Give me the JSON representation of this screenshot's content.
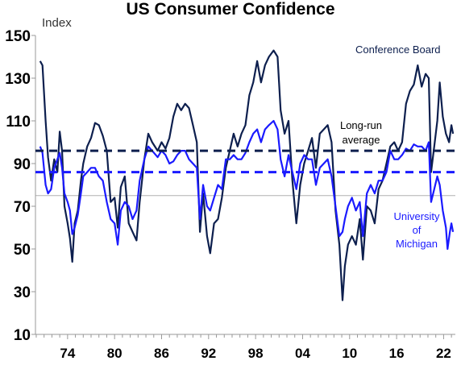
{
  "chart_data": {
    "type": "line",
    "title": "US Consumer Confidence",
    "ylabel": "Index",
    "xlabel": "",
    "ylim": [
      10,
      150
    ],
    "xlim": [
      1969.9,
      2023.5
    ],
    "y_ticks": [
      10,
      30,
      50,
      70,
      90,
      110,
      130,
      150
    ],
    "x_tick_labels": [
      "74",
      "80",
      "86",
      "92",
      "98",
      "04",
      "10",
      "16",
      "22"
    ],
    "x_tick_years": [
      1974,
      1980,
      1986,
      1992,
      1998,
      2004,
      2010,
      2016,
      2022
    ],
    "grid": false,
    "colors": {
      "conference_board": "#0d1f4e",
      "university_of_michigan": "#1a1aff",
      "axis": "#999999",
      "reference_line": "#b0b0b0"
    },
    "reference_line": {
      "y": 75
    },
    "series": [
      {
        "key": "conference_board",
        "name": "Conference Board",
        "long_run_average": 96,
        "points": [
          [
            1970.5,
            138
          ],
          [
            1970.8,
            136
          ],
          [
            1971.2,
            110
          ],
          [
            1971.5,
            93
          ],
          [
            1971.9,
            82
          ],
          [
            1972.3,
            92
          ],
          [
            1972.7,
            86
          ],
          [
            1973.0,
            105
          ],
          [
            1973.3,
            96
          ],
          [
            1973.6,
            70
          ],
          [
            1974.0,
            62
          ],
          [
            1974.3,
            55
          ],
          [
            1974.6,
            44
          ],
          [
            1974.9,
            62
          ],
          [
            1975.3,
            68
          ],
          [
            1975.7,
            82
          ],
          [
            1976.0,
            90
          ],
          [
            1976.5,
            98
          ],
          [
            1977.0,
            102
          ],
          [
            1977.5,
            109
          ],
          [
            1978.0,
            108
          ],
          [
            1978.5,
            103
          ],
          [
            1979.0,
            96
          ],
          [
            1979.5,
            72
          ],
          [
            1980.0,
            74
          ],
          [
            1980.4,
            60
          ],
          [
            1980.8,
            79
          ],
          [
            1981.3,
            84
          ],
          [
            1981.8,
            62
          ],
          [
            1982.3,
            58
          ],
          [
            1982.8,
            54
          ],
          [
            1983.2,
            72
          ],
          [
            1983.8,
            92
          ],
          [
            1984.3,
            104
          ],
          [
            1984.8,
            100
          ],
          [
            1985.5,
            96
          ],
          [
            1986.0,
            100
          ],
          [
            1986.5,
            97
          ],
          [
            1987.0,
            102
          ],
          [
            1987.5,
            112
          ],
          [
            1988.0,
            118
          ],
          [
            1988.5,
            115
          ],
          [
            1989.0,
            118
          ],
          [
            1989.5,
            116
          ],
          [
            1990.0,
            108
          ],
          [
            1990.5,
            100
          ],
          [
            1990.9,
            58
          ],
          [
            1991.3,
            76
          ],
          [
            1991.8,
            56
          ],
          [
            1992.2,
            48
          ],
          [
            1992.7,
            62
          ],
          [
            1993.2,
            64
          ],
          [
            1993.7,
            74
          ],
          [
            1994.2,
            88
          ],
          [
            1994.7,
            96
          ],
          [
            1995.2,
            104
          ],
          [
            1995.7,
            98
          ],
          [
            1996.2,
            104
          ],
          [
            1996.7,
            108
          ],
          [
            1997.2,
            122
          ],
          [
            1997.7,
            128
          ],
          [
            1998.2,
            138
          ],
          [
            1998.7,
            128
          ],
          [
            1999.2,
            136
          ],
          [
            1999.7,
            140
          ],
          [
            2000.3,
            143
          ],
          [
            2000.8,
            140
          ],
          [
            2001.2,
            115
          ],
          [
            2001.7,
            104
          ],
          [
            2002.2,
            110
          ],
          [
            2002.7,
            82
          ],
          [
            2003.2,
            62
          ],
          [
            2003.7,
            80
          ],
          [
            2004.2,
            90
          ],
          [
            2004.7,
            96
          ],
          [
            2005.2,
            102
          ],
          [
            2005.7,
            88
          ],
          [
            2006.2,
            104
          ],
          [
            2006.7,
            106
          ],
          [
            2007.2,
            108
          ],
          [
            2007.7,
            100
          ],
          [
            2008.2,
            68
          ],
          [
            2008.7,
            52
          ],
          [
            2009.1,
            26
          ],
          [
            2009.4,
            42
          ],
          [
            2009.8,
            52
          ],
          [
            2010.3,
            56
          ],
          [
            2010.8,
            52
          ],
          [
            2011.3,
            64
          ],
          [
            2011.7,
            45
          ],
          [
            2012.2,
            70
          ],
          [
            2012.7,
            68
          ],
          [
            2013.2,
            62
          ],
          [
            2013.7,
            78
          ],
          [
            2014.2,
            82
          ],
          [
            2014.7,
            90
          ],
          [
            2015.2,
            98
          ],
          [
            2015.7,
            100
          ],
          [
            2016.2,
            96
          ],
          [
            2016.7,
            100
          ],
          [
            2017.2,
            118
          ],
          [
            2017.7,
            124
          ],
          [
            2018.2,
            127
          ],
          [
            2018.7,
            136
          ],
          [
            2019.2,
            126
          ],
          [
            2019.7,
            132
          ],
          [
            2020.1,
            130
          ],
          [
            2020.4,
            86
          ],
          [
            2020.8,
            98
          ],
          [
            2021.2,
            110
          ],
          [
            2021.5,
            128
          ],
          [
            2021.9,
            112
          ],
          [
            2022.3,
            104
          ],
          [
            2022.7,
            100
          ],
          [
            2023.0,
            108
          ],
          [
            2023.2,
            104
          ]
        ]
      },
      {
        "key": "university_of_michigan",
        "name": "University of Michigan",
        "long_run_average": 86,
        "points": [
          [
            1970.5,
            98
          ],
          [
            1970.8,
            95
          ],
          [
            1971.2,
            80
          ],
          [
            1971.5,
            76
          ],
          [
            1971.9,
            78
          ],
          [
            1972.3,
            88
          ],
          [
            1972.7,
            92
          ],
          [
            1973.0,
            95
          ],
          [
            1973.3,
            88
          ],
          [
            1973.6,
            76
          ],
          [
            1974.0,
            72
          ],
          [
            1974.3,
            68
          ],
          [
            1974.6,
            57
          ],
          [
            1974.9,
            60
          ],
          [
            1975.3,
            66
          ],
          [
            1975.7,
            76
          ],
          [
            1976.0,
            84
          ],
          [
            1976.5,
            86
          ],
          [
            1977.0,
            88
          ],
          [
            1977.5,
            88
          ],
          [
            1978.0,
            84
          ],
          [
            1978.5,
            82
          ],
          [
            1979.0,
            72
          ],
          [
            1979.5,
            64
          ],
          [
            1980.0,
            62
          ],
          [
            1980.4,
            52
          ],
          [
            1980.8,
            68
          ],
          [
            1981.3,
            72
          ],
          [
            1981.8,
            70
          ],
          [
            1982.3,
            64
          ],
          [
            1982.8,
            68
          ],
          [
            1983.2,
            82
          ],
          [
            1983.8,
            92
          ],
          [
            1984.3,
            98
          ],
          [
            1984.8,
            96
          ],
          [
            1985.5,
            93
          ],
          [
            1986.0,
            96
          ],
          [
            1986.5,
            94
          ],
          [
            1987.0,
            90
          ],
          [
            1987.5,
            91
          ],
          [
            1988.0,
            94
          ],
          [
            1988.5,
            96
          ],
          [
            1989.0,
            96
          ],
          [
            1989.5,
            92
          ],
          [
            1990.0,
            90
          ],
          [
            1990.5,
            88
          ],
          [
            1990.9,
            64
          ],
          [
            1991.3,
            80
          ],
          [
            1991.8,
            70
          ],
          [
            1992.2,
            68
          ],
          [
            1992.7,
            74
          ],
          [
            1993.2,
            80
          ],
          [
            1993.7,
            78
          ],
          [
            1994.2,
            92
          ],
          [
            1994.7,
            92
          ],
          [
            1995.2,
            94
          ],
          [
            1995.7,
            92
          ],
          [
            1996.2,
            92
          ],
          [
            1996.7,
            95
          ],
          [
            1997.2,
            100
          ],
          [
            1997.7,
            104
          ],
          [
            1998.2,
            106
          ],
          [
            1998.7,
            100
          ],
          [
            1999.2,
            106
          ],
          [
            1999.7,
            108
          ],
          [
            2000.3,
            110
          ],
          [
            2000.8,
            106
          ],
          [
            2001.2,
            92
          ],
          [
            2001.7,
            84
          ],
          [
            2002.2,
            94
          ],
          [
            2002.7,
            86
          ],
          [
            2003.2,
            78
          ],
          [
            2003.7,
            90
          ],
          [
            2004.2,
            94
          ],
          [
            2004.7,
            92
          ],
          [
            2005.2,
            92
          ],
          [
            2005.7,
            80
          ],
          [
            2006.2,
            88
          ],
          [
            2006.7,
            90
          ],
          [
            2007.2,
            92
          ],
          [
            2007.7,
            84
          ],
          [
            2008.2,
            70
          ],
          [
            2008.7,
            56
          ],
          [
            2009.1,
            58
          ],
          [
            2009.4,
            64
          ],
          [
            2009.8,
            70
          ],
          [
            2010.3,
            74
          ],
          [
            2010.8,
            68
          ],
          [
            2011.3,
            72
          ],
          [
            2011.7,
            56
          ],
          [
            2012.2,
            76
          ],
          [
            2012.7,
            80
          ],
          [
            2013.2,
            76
          ],
          [
            2013.7,
            82
          ],
          [
            2014.2,
            82
          ],
          [
            2014.7,
            86
          ],
          [
            2015.2,
            96
          ],
          [
            2015.7,
            92
          ],
          [
            2016.2,
            92
          ],
          [
            2016.7,
            94
          ],
          [
            2017.2,
            97
          ],
          [
            2017.7,
            96
          ],
          [
            2018.2,
            99
          ],
          [
            2018.7,
            98
          ],
          [
            2019.2,
            98
          ],
          [
            2019.7,
            96
          ],
          [
            2020.1,
            100
          ],
          [
            2020.4,
            72
          ],
          [
            2020.8,
            78
          ],
          [
            2021.2,
            84
          ],
          [
            2021.5,
            80
          ],
          [
            2021.9,
            68
          ],
          [
            2022.3,
            60
          ],
          [
            2022.5,
            50
          ],
          [
            2022.8,
            58
          ],
          [
            2023.0,
            62
          ],
          [
            2023.2,
            58
          ]
        ]
      }
    ],
    "annotations": {
      "conference_board": "Conference Board",
      "long_run_line1": "Long-run",
      "long_run_line2": "average",
      "mich_line1": "University",
      "mich_line2": "of",
      "mich_line3": "Michigan"
    }
  }
}
